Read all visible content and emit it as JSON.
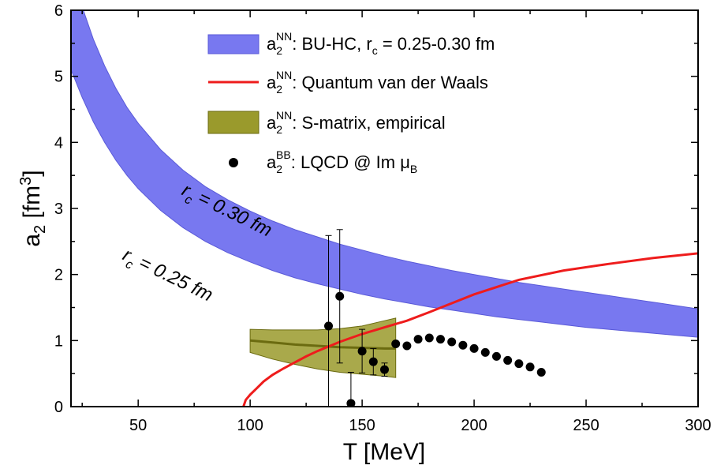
{
  "chart_data": {
    "type": "line",
    "xlabel": "T [MeV]",
    "ylabel": {
      "main": "a",
      "sub": "2",
      "unit_open": " [fm",
      "unit_sup": "3",
      "unit_close": "]"
    },
    "xlim": [
      20,
      300
    ],
    "ylim": [
      0,
      6
    ],
    "xticks": [
      50,
      100,
      150,
      200,
      250,
      300
    ],
    "yticks": [
      0,
      1,
      2,
      3,
      4,
      5,
      6
    ],
    "grid": false,
    "legend_position": "top-right",
    "colors": {
      "band_bu_hc": "#7878f0",
      "band_bu_hc_edge": "#5a5ad8",
      "line_qvdw": "#ee1c1c",
      "band_smatrix": "#9a9a2c",
      "line_smatrix": "#6b6b10",
      "points": "#000000"
    },
    "series": [
      {
        "name": {
          "pre": "a",
          "sub": "2",
          "sup": "NN",
          "post": ": BU-HC, r",
          "sub2": "c",
          "post2": " = 0.25-0.30 fm"
        },
        "kind": "band",
        "x": [
          20,
          25,
          30,
          35,
          40,
          45,
          50,
          60,
          70,
          80,
          90,
          100,
          110,
          120,
          130,
          140,
          150,
          160,
          170,
          180,
          190,
          200,
          210,
          220,
          230,
          240,
          250,
          260,
          270,
          280,
          290,
          300
        ],
        "upper": [
          6.66,
          6.05,
          5.56,
          5.16,
          4.82,
          4.53,
          4.29,
          3.89,
          3.58,
          3.33,
          3.13,
          2.96,
          2.81,
          2.68,
          2.57,
          2.46,
          2.37,
          2.28,
          2.2,
          2.13,
          2.06,
          2.0,
          1.94,
          1.88,
          1.83,
          1.78,
          1.73,
          1.68,
          1.63,
          1.58,
          1.53,
          1.48
        ],
        "lower": [
          5.1,
          4.68,
          4.31,
          4.0,
          3.73,
          3.5,
          3.3,
          2.97,
          2.71,
          2.5,
          2.33,
          2.19,
          2.06,
          1.95,
          1.86,
          1.78,
          1.7,
          1.63,
          1.57,
          1.51,
          1.46,
          1.41,
          1.36,
          1.32,
          1.28,
          1.24,
          1.2,
          1.17,
          1.14,
          1.11,
          1.08,
          1.05
        ]
      },
      {
        "name": {
          "pre": "a",
          "sub": "2",
          "sup": "NN",
          "post": ": Quantum van der Waals"
        },
        "kind": "line",
        "x": [
          97,
          98,
          100,
          103,
          106,
          110,
          115,
          120,
          125,
          130,
          140,
          150,
          160,
          170,
          180,
          200,
          220,
          240,
          260,
          280,
          300
        ],
        "y": [
          0.0,
          0.1,
          0.18,
          0.28,
          0.38,
          0.48,
          0.58,
          0.67,
          0.76,
          0.84,
          0.98,
          1.1,
          1.2,
          1.3,
          1.43,
          1.7,
          1.92,
          2.06,
          2.16,
          2.25,
          2.32
        ]
      },
      {
        "name": {
          "pre": "a",
          "sub": "2",
          "sup": "NN",
          "post": ": S-matrix, empirical"
        },
        "kind": "band",
        "x": [
          100,
          110,
          120,
          130,
          140,
          150,
          160,
          165
        ],
        "upper": [
          1.17,
          1.16,
          1.16,
          1.16,
          1.18,
          1.22,
          1.3,
          1.34
        ],
        "lower": [
          0.82,
          0.72,
          0.64,
          0.57,
          0.52,
          0.49,
          0.46,
          0.44
        ],
        "center": [
          1.0,
          0.97,
          0.94,
          0.92,
          0.9,
          0.89,
          0.88,
          0.88
        ]
      },
      {
        "name": {
          "pre": "a",
          "sub": "2",
          "sup": "BB",
          "post": ":  LQCD @ Im μ",
          "sub2": "B"
        },
        "kind": "scatter",
        "points": [
          {
            "x": 135,
            "y": 1.22,
            "err": 1.37
          },
          {
            "x": 140,
            "y": 1.67,
            "err": 1.01
          },
          {
            "x": 145,
            "y": 0.05,
            "err": 0.47
          },
          {
            "x": 150,
            "y": 0.84,
            "err": 0.33
          },
          {
            "x": 155,
            "y": 0.68,
            "err": 0.2
          },
          {
            "x": 160,
            "y": 0.56,
            "err": 0.1
          },
          {
            "x": 165,
            "y": 0.95
          },
          {
            "x": 170,
            "y": 0.92
          },
          {
            "x": 175,
            "y": 1.02
          },
          {
            "x": 180,
            "y": 1.04
          },
          {
            "x": 185,
            "y": 1.02
          },
          {
            "x": 190,
            "y": 0.98
          },
          {
            "x": 195,
            "y": 0.93
          },
          {
            "x": 200,
            "y": 0.88
          },
          {
            "x": 205,
            "y": 0.82
          },
          {
            "x": 210,
            "y": 0.76
          },
          {
            "x": 215,
            "y": 0.7
          },
          {
            "x": 220,
            "y": 0.65
          },
          {
            "x": 225,
            "y": 0.6
          },
          {
            "x": 230,
            "y": 0.52
          }
        ]
      }
    ],
    "annotations": [
      {
        "r": "r",
        "sub": "c",
        "rest": " = 0.30 fm",
        "x": 62,
        "y": 2.87
      },
      {
        "r": "r",
        "sub": "c",
        "rest": " = 0.25 fm",
        "x": 34,
        "y": 2.23
      }
    ]
  }
}
